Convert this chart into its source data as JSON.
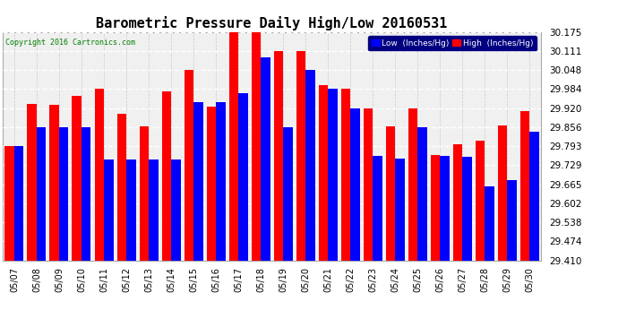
{
  "title": "Barometric Pressure Daily High/Low 20160531",
  "copyright": "Copyright 2016 Cartronics.com",
  "dates": [
    "05/07",
    "05/08",
    "05/09",
    "05/10",
    "05/11",
    "05/12",
    "05/13",
    "05/14",
    "05/15",
    "05/16",
    "05/17",
    "05/18",
    "05/19",
    "05/20",
    "05/21",
    "05/22",
    "05/23",
    "05/24",
    "05/25",
    "05/26",
    "05/27",
    "05/28",
    "05/29",
    "05/30"
  ],
  "high_values": [
    29.793,
    29.935,
    29.93,
    29.96,
    29.984,
    29.9,
    29.858,
    29.975,
    30.048,
    29.925,
    30.175,
    30.175,
    30.111,
    30.111,
    29.998,
    29.984,
    29.92,
    29.858,
    29.92,
    29.762,
    29.8,
    29.81,
    29.862,
    29.91
  ],
  "low_values": [
    29.793,
    29.856,
    29.856,
    29.856,
    29.748,
    29.748,
    29.748,
    29.748,
    29.94,
    29.94,
    29.97,
    30.09,
    29.855,
    30.048,
    29.984,
    29.92,
    29.76,
    29.752,
    29.856,
    29.76,
    29.756,
    29.658,
    29.68,
    29.84
  ],
  "low_color": "#0000ff",
  "high_color": "#ff0000",
  "bg_color": "#ffffff",
  "plot_bg_color": "#f0f0f0",
  "ymin": 29.41,
  "ymax": 30.175,
  "yticks": [
    29.41,
    29.474,
    29.538,
    29.602,
    29.665,
    29.729,
    29.793,
    29.856,
    29.92,
    29.984,
    30.048,
    30.111,
    30.175
  ],
  "title_fontsize": 11,
  "legend_low_label": "Low  (Inches/Hg)",
  "legend_high_label": "High  (Inches/Hg)"
}
